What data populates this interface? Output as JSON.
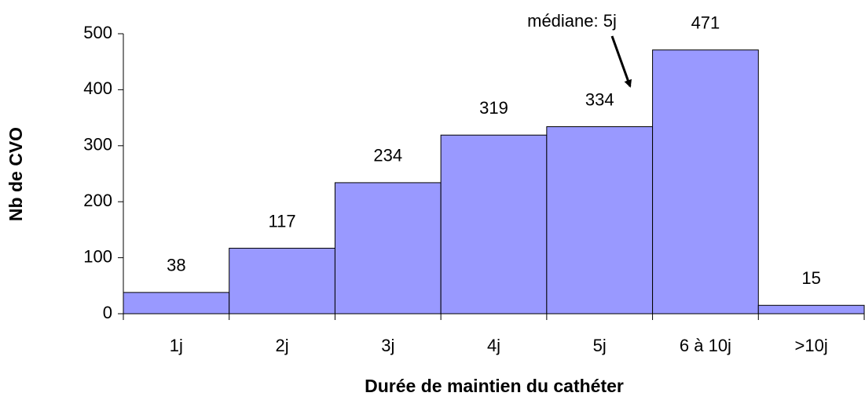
{
  "chart_data": {
    "type": "bar",
    "categories": [
      "1j",
      "2j",
      "3j",
      "4j",
      "5j",
      "6 à 10j",
      ">10j"
    ],
    "values": [
      38,
      117,
      234,
      319,
      334,
      471,
      15
    ],
    "color": "#9999ff",
    "xlabel": "Durée de maintien du cathéter",
    "ylabel": "Nb de CVO",
    "annotation": "médiane: 5j",
    "ylim": [
      0,
      500
    ],
    "yticks": [
      0,
      100,
      200,
      300,
      400,
      500
    ],
    "grid": false
  }
}
